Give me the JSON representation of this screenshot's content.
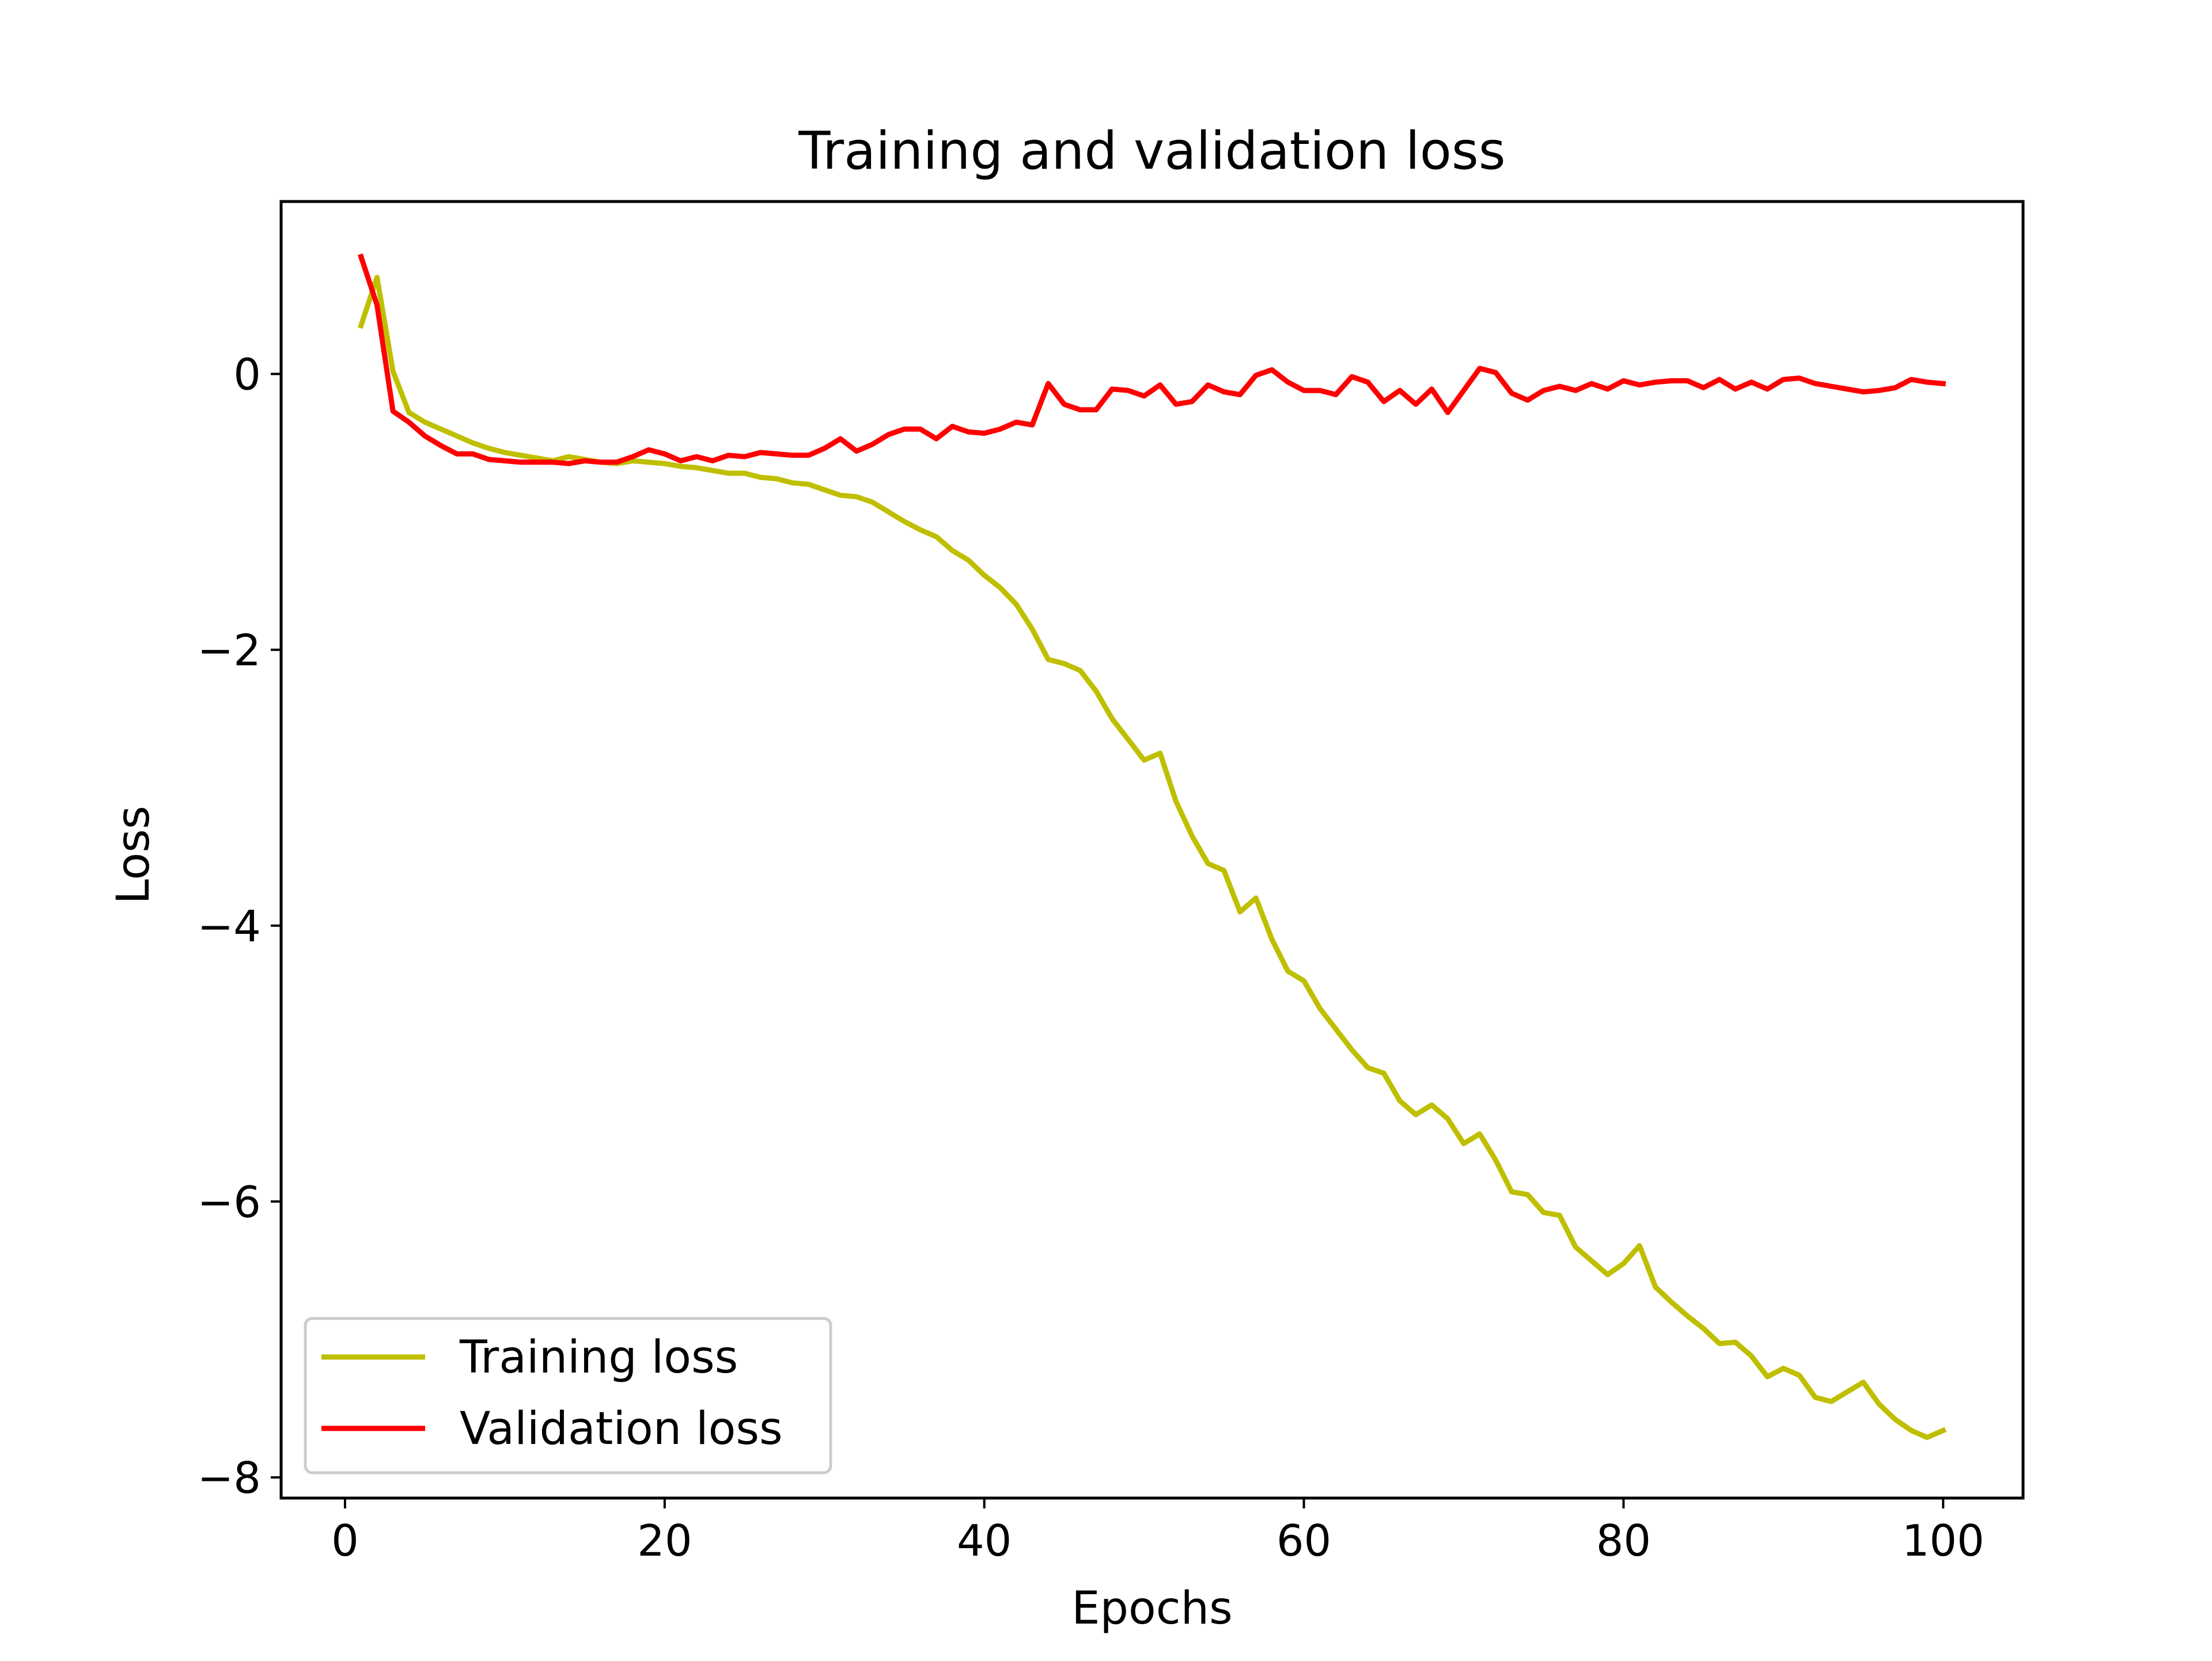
{
  "chart_data": {
    "type": "line",
    "title": "Training and validation loss",
    "xlabel": "Epochs",
    "ylabel": "Loss",
    "xlim": [
      -4,
      105
    ],
    "ylim": [
      -8.15,
      1.25
    ],
    "xticks": [
      0,
      20,
      40,
      60,
      80,
      100
    ],
    "xtick_labels": [
      "0",
      "20",
      "40",
      "60",
      "80",
      "100"
    ],
    "yticks": [
      0,
      -2,
      -4,
      -6,
      -8
    ],
    "ytick_labels": [
      "0",
      "−2",
      "−4",
      "−6",
      "−8"
    ],
    "grid": false,
    "legend_position": "lower-left",
    "x": [
      1,
      2,
      3,
      4,
      5,
      6,
      7,
      8,
      9,
      10,
      11,
      12,
      13,
      14,
      15,
      16,
      17,
      18,
      19,
      20,
      21,
      22,
      23,
      24,
      25,
      26,
      27,
      28,
      29,
      30,
      31,
      32,
      33,
      34,
      35,
      36,
      37,
      38,
      39,
      40,
      41,
      42,
      43,
      44,
      45,
      46,
      47,
      48,
      49,
      50,
      51,
      52,
      53,
      54,
      55,
      56,
      57,
      58,
      59,
      60,
      61,
      62,
      63,
      64,
      65,
      66,
      67,
      68,
      69,
      70,
      71,
      72,
      73,
      74,
      75,
      76,
      77,
      78,
      79,
      80,
      81,
      82,
      83,
      84,
      85,
      86,
      87,
      88,
      89,
      90,
      91,
      92,
      93,
      94,
      95,
      96,
      97,
      98,
      99,
      100
    ],
    "series": [
      {
        "name": "Training loss",
        "color": "#bfbf00",
        "values": [
          0.35,
          0.7,
          0.02,
          -0.28,
          -0.35,
          -0.4,
          -0.45,
          -0.5,
          -0.54,
          -0.57,
          -0.59,
          -0.61,
          -0.63,
          -0.6,
          -0.62,
          -0.64,
          -0.65,
          -0.63,
          -0.64,
          -0.65,
          -0.67,
          -0.68,
          -0.7,
          -0.72,
          -0.72,
          -0.75,
          -0.76,
          -0.79,
          -0.8,
          -0.84,
          -0.88,
          -0.89,
          -0.93,
          -1.0,
          -1.07,
          -1.13,
          -1.18,
          -1.28,
          -1.35,
          -1.46,
          -1.55,
          -1.67,
          -1.85,
          -2.07,
          -2.1,
          -2.15,
          -2.3,
          -2.5,
          -2.65,
          -2.8,
          -2.75,
          -3.1,
          -3.35,
          -3.55,
          -3.6,
          -3.9,
          -3.8,
          -4.1,
          -4.33,
          -4.4,
          -4.6,
          -4.75,
          -4.9,
          -5.03,
          -5.07,
          -5.27,
          -5.37,
          -5.3,
          -5.4,
          -5.58,
          -5.51,
          -5.7,
          -5.93,
          -5.95,
          -6.08,
          -6.1,
          -6.33,
          -6.43,
          -6.53,
          -6.45,
          -6.32,
          -6.62,
          -6.73,
          -6.83,
          -6.92,
          -7.03,
          -7.02,
          -7.12,
          -7.27,
          -7.21,
          -7.26,
          -7.42,
          -7.45,
          -7.38,
          -7.31,
          -7.47,
          -7.58,
          -7.66,
          -7.71,
          -7.66
        ]
      },
      {
        "name": "Validation loss",
        "color": "#ff0000",
        "values": [
          0.85,
          0.5,
          -0.27,
          -0.35,
          -0.45,
          -0.52,
          -0.58,
          -0.58,
          -0.62,
          -0.63,
          -0.64,
          -0.64,
          -0.64,
          -0.65,
          -0.63,
          -0.64,
          -0.64,
          -0.6,
          -0.55,
          -0.58,
          -0.63,
          -0.6,
          -0.63,
          -0.59,
          -0.6,
          -0.57,
          -0.58,
          -0.59,
          -0.59,
          -0.54,
          -0.47,
          -0.56,
          -0.51,
          -0.44,
          -0.4,
          -0.4,
          -0.47,
          -0.38,
          -0.42,
          -0.43,
          -0.4,
          -0.35,
          -0.37,
          -0.07,
          -0.22,
          -0.26,
          -0.26,
          -0.11,
          -0.12,
          -0.16,
          -0.08,
          -0.22,
          -0.2,
          -0.08,
          -0.13,
          -0.15,
          -0.01,
          0.03,
          -0.06,
          -0.12,
          -0.12,
          -0.15,
          -0.02,
          -0.06,
          -0.2,
          -0.12,
          -0.22,
          -0.11,
          -0.28,
          -0.12,
          0.04,
          0.01,
          -0.14,
          -0.19,
          -0.12,
          -0.09,
          -0.12,
          -0.07,
          -0.11,
          -0.05,
          -0.08,
          -0.06,
          -0.05,
          -0.05,
          -0.1,
          -0.04,
          -0.11,
          -0.06,
          -0.11,
          -0.04,
          -0.03,
          -0.07,
          -0.09,
          -0.11,
          -0.13,
          -0.12,
          -0.1,
          -0.04,
          -0.06,
          -0.07
        ]
      }
    ]
  }
}
